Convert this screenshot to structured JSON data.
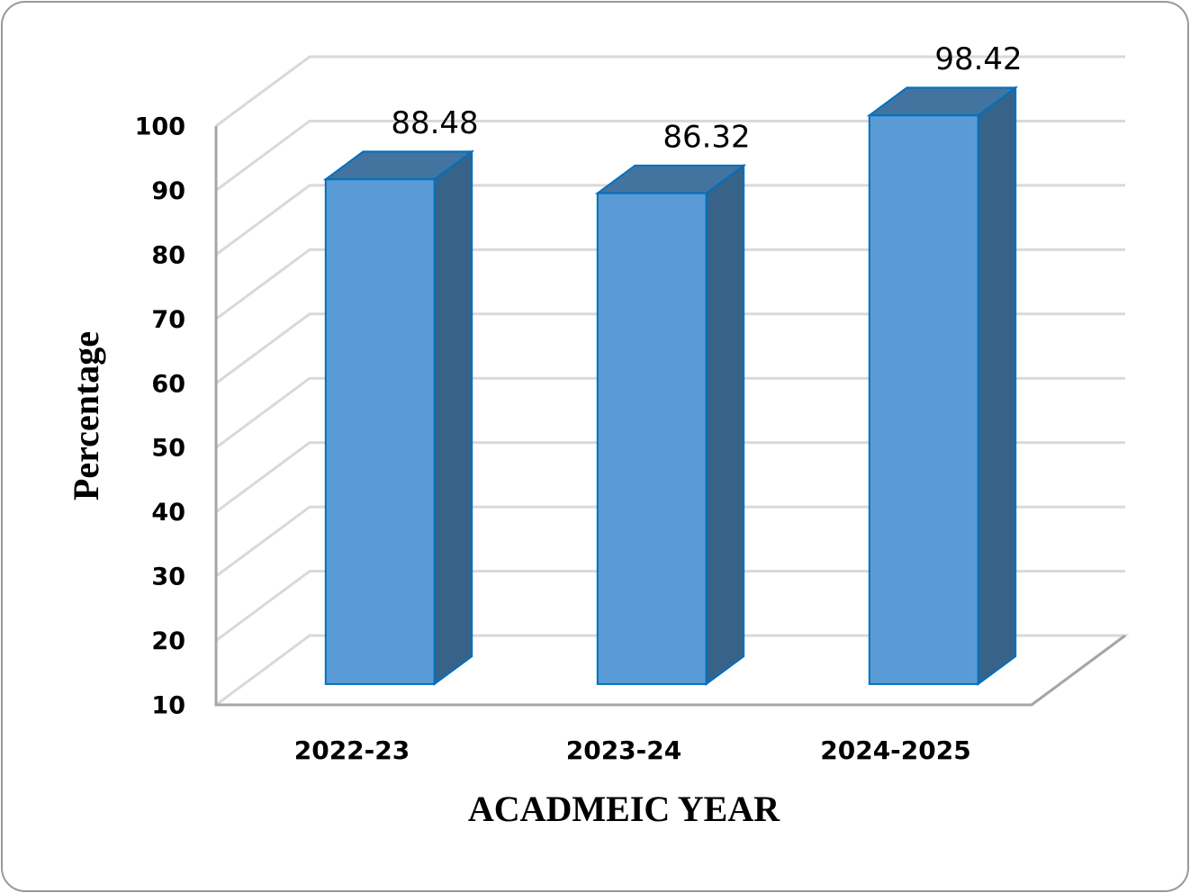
{
  "chart_data": {
    "type": "bar3d",
    "x_label": "ACADMEIC YEAR",
    "y_label": "Percentage",
    "categories": [
      "2022-23",
      "2023-24",
      "2024-2025"
    ],
    "values": [
      88.48,
      86.32,
      98.42
    ],
    "color": "#5b9bd5",
    "ylim": [
      10,
      100
    ],
    "yticks": [
      10,
      20,
      30,
      40,
      50,
      60,
      70,
      80,
      90,
      100
    ],
    "grid": true
  }
}
